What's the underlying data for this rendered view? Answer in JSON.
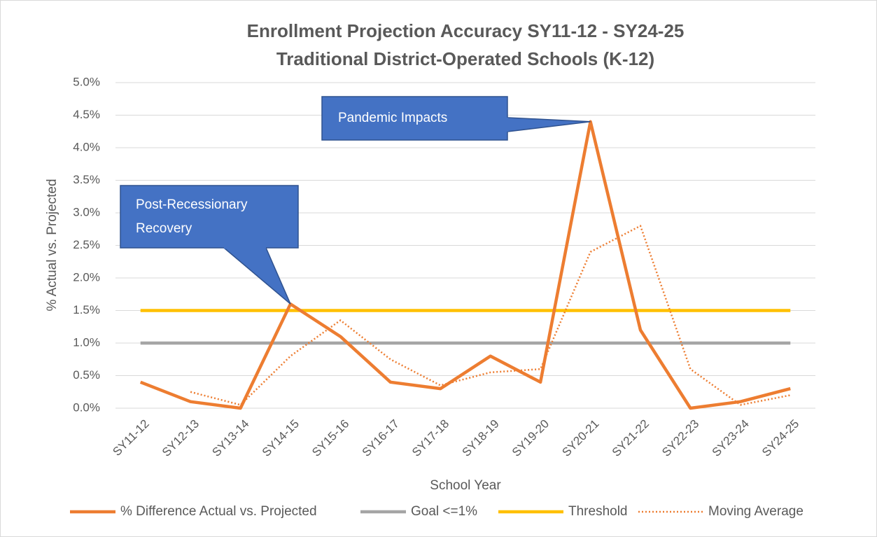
{
  "chart_data": {
    "type": "line",
    "title": "Enrollment Projection Accuracy SY11-12 - SY24-25",
    "subtitle": "Traditional District-Operated Schools (K-12)",
    "x_label": "School Year",
    "y_label": "% Actual vs. Projected",
    "categories": [
      "SY11-12",
      "SY12-13",
      "SY13-14",
      "SY14-15",
      "SY15-16",
      "SY16-17",
      "SY17-18",
      "SY18-19",
      "SY19-20",
      "SY20-21",
      "SY21-22",
      "SY22-23",
      "SY23-24",
      "SY24-25"
    ],
    "series": [
      {
        "name": "% Difference Actual vs. Projected",
        "color": "#ED7D31",
        "style": "solid",
        "values": [
          0.4,
          0.1,
          0.0,
          1.6,
          1.1,
          0.4,
          0.3,
          0.8,
          0.4,
          4.4,
          1.2,
          0.0,
          0.1,
          0.3
        ]
      },
      {
        "name": "Goal <=1%",
        "color": "#A5A5A5",
        "style": "solid",
        "values": [
          1,
          1,
          1,
          1,
          1,
          1,
          1,
          1,
          1,
          1,
          1,
          1,
          1,
          1
        ]
      },
      {
        "name": "Threshold",
        "color": "#FFC000",
        "style": "solid",
        "values": [
          1.5,
          1.5,
          1.5,
          1.5,
          1.5,
          1.5,
          1.5,
          1.5,
          1.5,
          1.5,
          1.5,
          1.5,
          1.5,
          1.5
        ]
      },
      {
        "name": "Moving Average",
        "color": "#ED7D31",
        "style": "dotted",
        "values": [
          null,
          0.25,
          0.05,
          0.8,
          1.35,
          0.75,
          0.35,
          0.55,
          0.6,
          2.4,
          2.8,
          0.6,
          0.05,
          0.2
        ]
      }
    ],
    "ylim": [
      0,
      5
    ],
    "yticks": [
      {
        "value": 0,
        "label": "0.0%"
      },
      {
        "value": 0.5,
        "label": "0.5%"
      },
      {
        "value": 1,
        "label": "1.0%"
      },
      {
        "value": 1.5,
        "label": "1.5%"
      },
      {
        "value": 2,
        "label": "2.0%"
      },
      {
        "value": 2.5,
        "label": "2.5%"
      },
      {
        "value": 3,
        "label": "3.0%"
      },
      {
        "value": 3.5,
        "label": "3.5%"
      },
      {
        "value": 4,
        "label": "4.0%"
      },
      {
        "value": 4.5,
        "label": "4.5%"
      },
      {
        "value": 5,
        "label": "5.0%"
      }
    ],
    "grid": true,
    "legend": "bottom",
    "annotations": [
      {
        "text": "Pandemic Impacts",
        "category": 9
      },
      {
        "text": "Post-Recessionary Recovery",
        "category": 3
      }
    ]
  }
}
